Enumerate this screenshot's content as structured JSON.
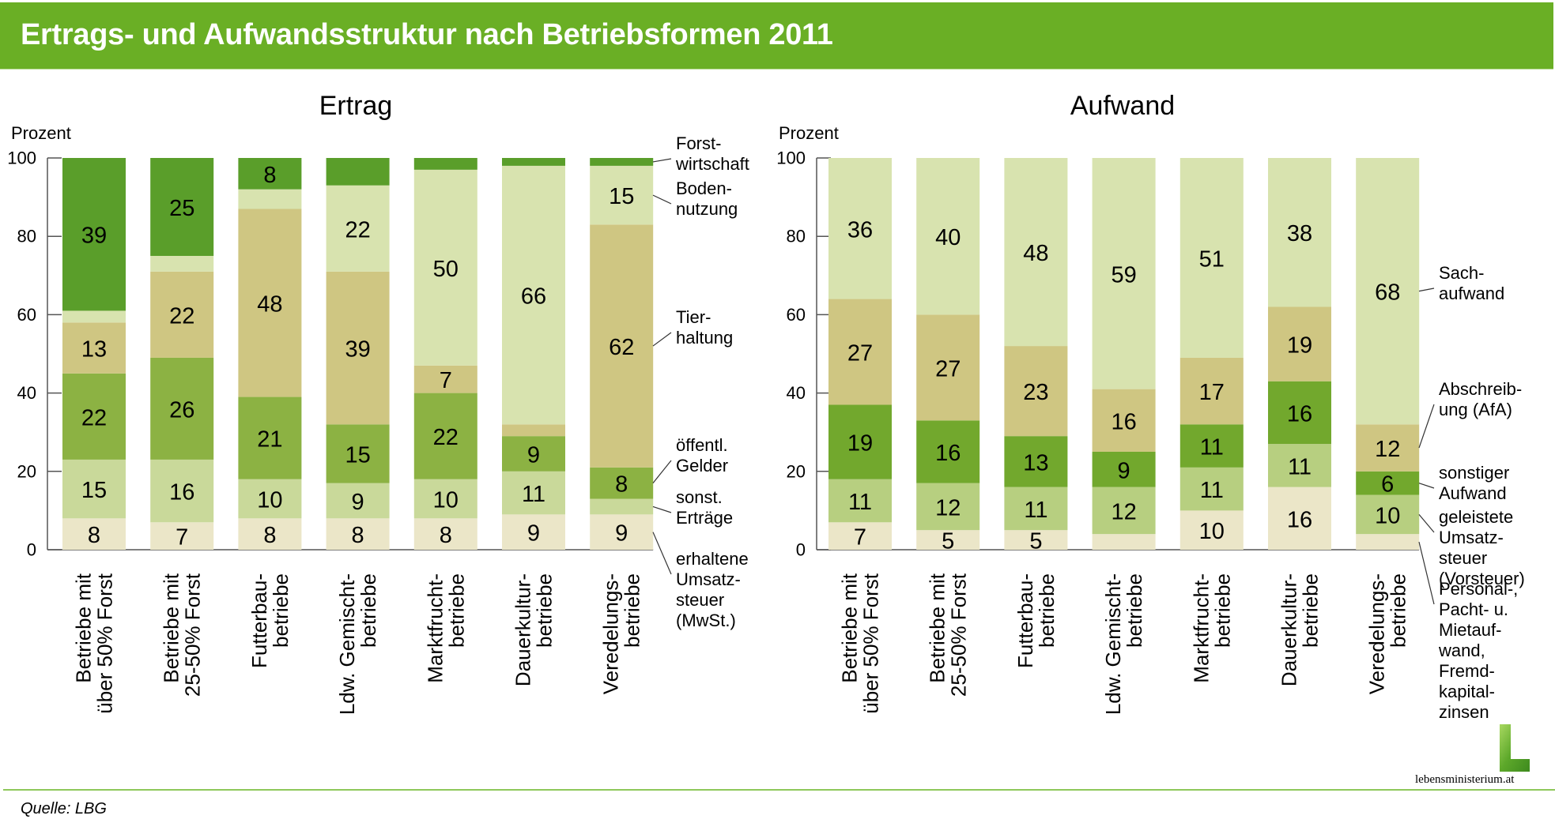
{
  "header": {
    "title": "Ertrags- und Aufwandsstruktur nach Betriebsformen 2011"
  },
  "footer": {
    "source": "Quelle: LBG",
    "logo_text": "lebensministerium.at"
  },
  "colors": {
    "title_bar": "#6aaf25",
    "forstwirtschaft": "#5a9e2a",
    "bodennutzung": "#d8e3af",
    "tierhaltung": "#cfc682",
    "oeffentl_gelder": "#8cb243",
    "sonst_ertraege": "#c9d99a",
    "mwst": "#ebe6c8",
    "sachaufwand": "#d8e3af",
    "afa": "#cfc682",
    "sonstiger_aufwand": "#72a82d",
    "vorsteuer": "#b7cf80",
    "personal": "#ebe6c8"
  },
  "chart_data": [
    {
      "type": "bar",
      "stacked": true,
      "title": "Ertrag",
      "ylabel": "Prozent",
      "ylim": [
        0,
        100
      ],
      "yticks": [
        0,
        20,
        40,
        60,
        80,
        100
      ],
      "categories": [
        [
          "Betriebe mit",
          "über 50% Forst"
        ],
        [
          "Betriebe mit",
          "25-50% Forst"
        ],
        [
          "Futterbau-",
          "betriebe"
        ],
        [
          "Ldw. Gemischt-",
          "betriebe"
        ],
        [
          "Marktfrucht-",
          "betriebe"
        ],
        [
          "Dauerkultur-",
          "betriebe"
        ],
        [
          "Veredelungs-",
          "betriebe"
        ]
      ],
      "series": [
        {
          "name": "erhaltene Umsatzsteuer (MwSt.)",
          "legend_lines": [
            "erhaltene",
            "Umsatz-",
            "steuer",
            "(MwSt.)"
          ],
          "color_key": "mwst",
          "values": [
            8,
            7,
            8,
            8,
            8,
            9,
            9
          ],
          "labeled": [
            true,
            true,
            true,
            true,
            true,
            true,
            true
          ]
        },
        {
          "name": "sonst. Erträge",
          "legend_lines": [
            "sonst.",
            "Erträge"
          ],
          "color_key": "sonst_ertraege",
          "values": [
            15,
            16,
            10,
            9,
            10,
            11,
            4
          ],
          "labeled": [
            true,
            true,
            true,
            true,
            true,
            true,
            false
          ]
        },
        {
          "name": "öffentl. Gelder",
          "legend_lines": [
            "öffentl.",
            "Gelder"
          ],
          "color_key": "oeffentl_gelder",
          "values": [
            22,
            26,
            21,
            15,
            22,
            9,
            8
          ],
          "labeled": [
            true,
            true,
            true,
            true,
            true,
            true,
            true
          ]
        },
        {
          "name": "Tierhaltung",
          "legend_lines": [
            "Tier-",
            "haltung"
          ],
          "color_key": "tierhaltung",
          "values": [
            13,
            22,
            48,
            39,
            7,
            3,
            62
          ],
          "labeled": [
            true,
            true,
            true,
            true,
            true,
            false,
            true
          ]
        },
        {
          "name": "Bodennutzung",
          "legend_lines": [
            "Boden-",
            "nutzung"
          ],
          "color_key": "bodennutzung",
          "values": [
            3,
            4,
            5,
            22,
            50,
            66,
            15
          ],
          "labeled": [
            false,
            false,
            false,
            true,
            true,
            true,
            true
          ]
        },
        {
          "name": "Forstwirtschaft",
          "legend_lines": [
            "Forst-",
            "wirtschaft"
          ],
          "color_key": "forstwirtschaft",
          "values": [
            39,
            25,
            8,
            7,
            3,
            2,
            2
          ],
          "labeled": [
            true,
            true,
            true,
            false,
            false,
            false,
            false
          ]
        }
      ]
    },
    {
      "type": "bar",
      "stacked": true,
      "title": "Aufwand",
      "ylabel": "Prozent",
      "ylim": [
        0,
        100
      ],
      "yticks": [
        0,
        20,
        40,
        60,
        80,
        100
      ],
      "categories": [
        [
          "Betriebe mit",
          "über 50% Forst"
        ],
        [
          "Betriebe mit",
          "25-50% Forst"
        ],
        [
          "Futterbau-",
          "betriebe"
        ],
        [
          "Ldw. Gemischt-",
          "betriebe"
        ],
        [
          "Marktfrucht-",
          "betriebe"
        ],
        [
          "Dauerkultur-",
          "betriebe"
        ],
        [
          "Veredelungs-",
          "betriebe"
        ]
      ],
      "series": [
        {
          "name": "Personal-, Pacht- u. Mietaufwand, Fremdkapitalzinsen",
          "legend_lines": [
            "Personal-,",
            "Pacht- u.",
            "Mietauf-",
            "wand,",
            "Fremd-",
            "kapital-",
            "zinsen"
          ],
          "color_key": "personal",
          "values": [
            7,
            5,
            5,
            4,
            10,
            16,
            4
          ],
          "labeled": [
            true,
            true,
            true,
            false,
            true,
            true,
            false
          ]
        },
        {
          "name": "geleistete Umsatzsteuer (Vorsteuer)",
          "legend_lines": [
            "geleistete",
            "Umsatz-",
            "steuer",
            "(Vorsteuer)"
          ],
          "color_key": "vorsteuer",
          "values": [
            11,
            12,
            11,
            12,
            11,
            11,
            10
          ],
          "labeled": [
            true,
            true,
            true,
            true,
            true,
            true,
            true
          ]
        },
        {
          "name": "sonstiger Aufwand",
          "legend_lines": [
            "sonstiger",
            "Aufwand"
          ],
          "color_key": "sonstiger_aufwand",
          "values": [
            19,
            16,
            13,
            9,
            11,
            16,
            6
          ],
          "labeled": [
            true,
            true,
            true,
            true,
            true,
            true,
            true
          ]
        },
        {
          "name": "Abschreibung (AfA)",
          "legend_lines": [
            "Abschreib-",
            "ung (AfA)"
          ],
          "color_key": "afa",
          "values": [
            27,
            27,
            23,
            16,
            17,
            19,
            12
          ],
          "labeled": [
            true,
            true,
            true,
            true,
            true,
            true,
            true
          ]
        },
        {
          "name": "Sachaufwand",
          "legend_lines": [
            "Sach-",
            "aufwand"
          ],
          "color_key": "sachaufwand",
          "values": [
            36,
            40,
            48,
            59,
            51,
            38,
            68
          ],
          "labeled": [
            true,
            true,
            true,
            true,
            true,
            true,
            true
          ]
        }
      ]
    }
  ]
}
